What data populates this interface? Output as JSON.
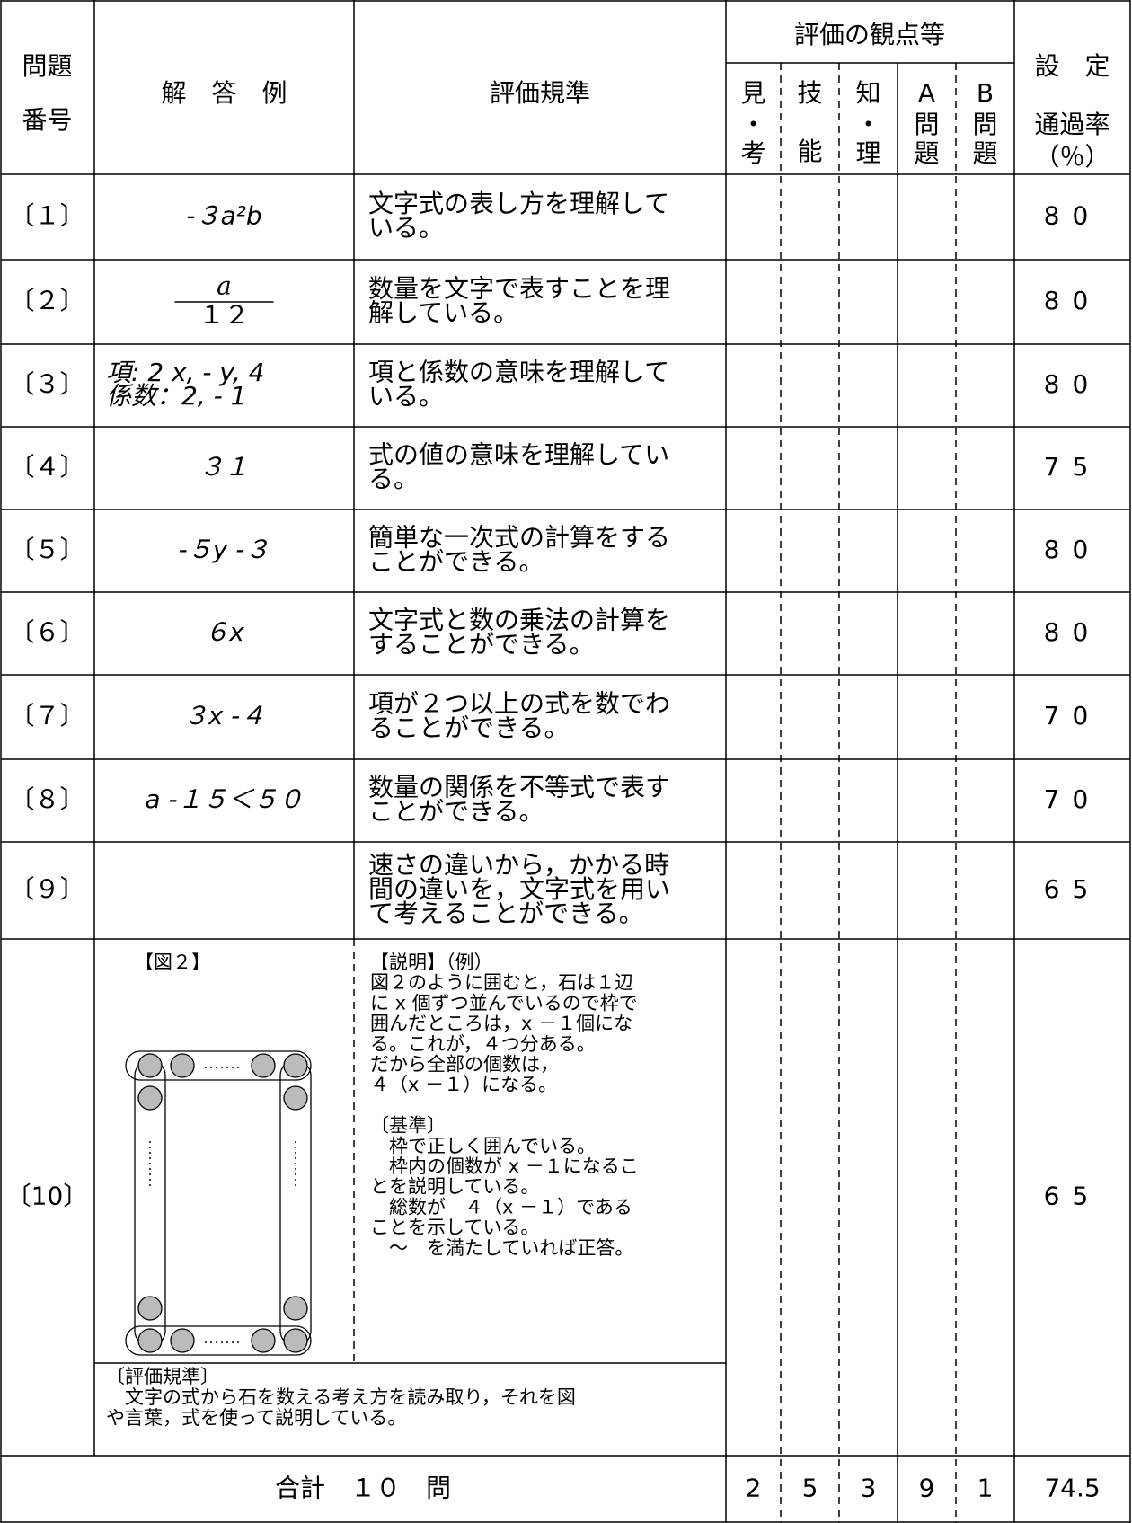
{
  "header": {
    "number": [
      "問題",
      "番号"
    ],
    "answer": "解　答　例",
    "criteria": "評価規準",
    "viewpoints": "評価の観点等",
    "viewpoint_columns": [
      [
        "見",
        "・",
        "考"
      ],
      [
        "技",
        "能"
      ],
      [
        "知",
        "・",
        "理"
      ],
      [
        "A",
        "問",
        "題"
      ],
      [
        "B",
        "問",
        "題"
      ]
    ],
    "rate": [
      "設　定",
      "通過率",
      "（％）"
    ]
  },
  "rows": [
    {
      "number": "〔１〕",
      "answer": [
        "-３a²b"
      ],
      "criteria": [
        "文字式の表し方を理解して",
        "いる。"
      ],
      "rate": 80
    },
    {
      "number": "〔２〕",
      "answer_fraction": [
        "a",
        "１２"
      ],
      "criteria": [
        "数量を文字で表すことを理",
        "解している。"
      ],
      "rate": 80
    },
    {
      "number": "〔３〕",
      "answer": [
        "項: 2 x, - y, 4",
        "係数：2, - 1"
      ],
      "criteria": [
        "項と係数の意味を理解して",
        "いる。"
      ],
      "rate": 80
    },
    {
      "number": "〔４〕",
      "answer": [
        "３１"
      ],
      "criteria": [
        "式の値の意味を理解してい",
        "る。"
      ],
      "rate": 75
    },
    {
      "number": "〔５〕",
      "answer": [
        "-５y -３"
      ],
      "criteria": [
        "簡単な一次式の計算をする",
        "ことができる。"
      ],
      "rate": 80
    },
    {
      "number": "〔６〕",
      "answer": [
        "６x"
      ],
      "criteria": [
        "文字式と数の乗法の計算を",
        "することができる。"
      ],
      "rate": 80
    },
    {
      "number": "〔７〕",
      "answer": [
        "３x -４"
      ],
      "criteria": [
        "項が２つ以上の式を数でわ",
        "ることができる。"
      ],
      "rate": 70
    },
    {
      "number": "〔８〕",
      "answer": [
        "a -１５＜５０"
      ],
      "criteria": [
        "数量の関係を不等式で表す",
        "ことができる。"
      ],
      "rate": 70
    },
    {
      "number": "〔９〕",
      "criteria": [
        "速さの違いから，かかる時",
        "間の違いを，文字式を用い",
        "て考えることができる。"
      ],
      "rate": 65
    },
    {
      "number": "〔10〕",
      "figure_label": "【図２】",
      "explanation": [
        "【説明】（例）",
        "図２のように囲むと，石は１辺",
        "に x 個ずつ並んでいるので枠で",
        "囲んだところは，x －１個にな",
        "る。これが，４つ分ある。",
        "だから全部の個数は，",
        "４（x －１）になる。"
      ],
      "standard": [
        "〔基準〕",
        "　枠で正しく囲んでいる。",
        "　枠内の個数が x －１になるこ",
        "とを説明している。",
        "　総数が　４（x －１）である",
        "ことを示している。",
        "　～　を満たしていれば正答。"
      ],
      "criteria": [
        "〔評価規準〕",
        "　文字の式から石を数える考え方を読み取り，それを図",
        "や言葉，式を使って説明している。"
      ],
      "rate": 65
    }
  ],
  "total": {
    "label": "合計　１０　問",
    "counts": [
      2,
      5,
      3,
      9,
      1
    ],
    "rate": 74.5
  }
}
